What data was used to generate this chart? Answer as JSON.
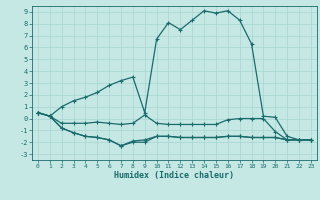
{
  "title": "",
  "xlabel": "Humidex (Indice chaleur)",
  "xlim": [
    -0.5,
    23.5
  ],
  "ylim": [
    -3.5,
    9.5
  ],
  "yticks": [
    -3,
    -2,
    -1,
    0,
    1,
    2,
    3,
    4,
    5,
    6,
    7,
    8,
    9
  ],
  "xticks": [
    0,
    1,
    2,
    3,
    4,
    5,
    6,
    7,
    8,
    9,
    10,
    11,
    12,
    13,
    14,
    15,
    16,
    17,
    18,
    19,
    20,
    21,
    22,
    23
  ],
  "bg_color": "#c5e8e5",
  "grid_color": "#a8d4d0",
  "line_color": "#1a6b6b",
  "line_width": 0.9,
  "markersize": 3.5,
  "lines": [
    [
      0.5,
      0.2,
      1.0,
      1.5,
      1.8,
      2.2,
      2.8,
      3.2,
      3.5,
      0.5,
      6.7,
      8.1,
      7.5,
      8.3,
      9.1,
      8.9,
      9.1,
      8.3,
      6.3,
      0.2,
      0.1,
      -1.5,
      -1.8,
      -1.8
    ],
    [
      0.5,
      0.2,
      -0.4,
      -0.4,
      -0.4,
      -0.3,
      -0.4,
      -0.5,
      -0.4,
      0.3,
      -0.4,
      -0.5,
      -0.5,
      -0.5,
      -0.5,
      -0.5,
      -0.1,
      0.0,
      0.0,
      0.0,
      -1.1,
      -1.8,
      -1.8,
      -1.8
    ],
    [
      0.5,
      0.2,
      -0.8,
      -1.2,
      -1.5,
      -1.6,
      -1.8,
      -2.3,
      -1.9,
      -1.8,
      -1.5,
      -1.5,
      -1.6,
      -1.6,
      -1.6,
      -1.6,
      -1.5,
      -1.5,
      -1.6,
      -1.6,
      -1.6,
      -1.8,
      -1.8,
      -1.8
    ],
    [
      0.5,
      0.2,
      -0.8,
      -1.2,
      -1.5,
      -1.6,
      -1.8,
      -2.3,
      -2.0,
      -2.0,
      -1.5,
      -1.5,
      -1.6,
      -1.6,
      -1.6,
      -1.6,
      -1.5,
      -1.5,
      -1.6,
      -1.6,
      -1.6,
      -1.8,
      -1.8,
      -1.8
    ]
  ]
}
